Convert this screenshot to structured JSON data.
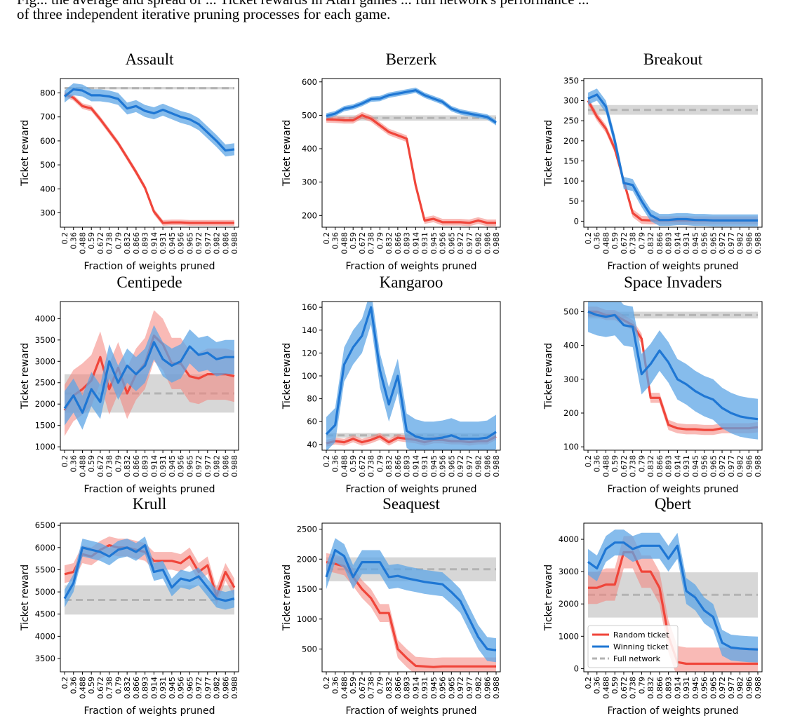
{
  "caption": {
    "line1": "Fig... the average and spread of ... Ticket rewards in Atari games ... full network's performance ...",
    "line2": "of three independent iterative pruning processes for each game."
  },
  "colors": {
    "random": "#f0453a",
    "winning": "#1f77d4",
    "full": "#b3b3b3",
    "random_fill": "#f4827a",
    "winning_fill": "#5ea6e6",
    "full_fill": "#c9c9c9"
  },
  "legend": {
    "placement": "lower-left (Qbert panel)",
    "entries": [
      "Random ticket",
      "Winning ticket",
      "Full network"
    ]
  },
  "chart_data": [
    {
      "type": "line",
      "title": "Assault",
      "xlabel": "Fraction of weights pruned",
      "ylabel": "Ticket reward",
      "x": [
        "0.2",
        "0.36",
        "0.488",
        "0.59",
        "0.672",
        "0.738",
        "0.79",
        "0.832",
        "0.866",
        "0.893",
        "0.914",
        "0.931",
        "0.945",
        "0.956",
        "0.965",
        "0.972",
        "0.977",
        "0.982",
        "0.986",
        "0.988"
      ],
      "ylim": [
        240,
        860
      ],
      "yticks": [
        300,
        400,
        500,
        600,
        700,
        800
      ],
      "series": [
        {
          "name": "Random ticket",
          "values": [
            795,
            780,
            745,
            735,
            690,
            640,
            590,
            530,
            470,
            405,
            305,
            258,
            260,
            260,
            258,
            258,
            258,
            258,
            258,
            258
          ],
          "spread": 12
        },
        {
          "name": "Winning ticket",
          "values": [
            785,
            815,
            810,
            790,
            790,
            785,
            775,
            735,
            745,
            725,
            715,
            730,
            715,
            700,
            690,
            670,
            635,
            600,
            560,
            565
          ],
          "spread": 25
        },
        {
          "name": "Full network",
          "values": [
            820,
            820,
            820,
            820,
            820,
            820,
            820,
            820,
            820,
            820,
            820,
            820,
            820,
            820,
            820,
            820,
            820,
            820,
            820,
            820
          ],
          "spread": 5
        }
      ]
    },
    {
      "type": "line",
      "title": "Berzerk",
      "xlabel": "Fraction of weights pruned",
      "ylabel": "Ticket reward",
      "x": [
        "0.2",
        "0.36",
        "0.488",
        "0.59",
        "0.672",
        "0.738",
        "0.79",
        "0.832",
        "0.866",
        "0.893",
        "0.914",
        "0.931",
        "0.945",
        "0.956",
        "0.965",
        "0.972",
        "0.977",
        "0.982",
        "0.986",
        "0.988"
      ],
      "ylim": [
        165,
        610
      ],
      "yticks": [
        200,
        300,
        400,
        500,
        600
      ],
      "series": [
        {
          "name": "Random ticket",
          "values": [
            488,
            487,
            485,
            485,
            500,
            490,
            470,
            450,
            440,
            430,
            290,
            185,
            190,
            180,
            180,
            180,
            178,
            185,
            178,
            178
          ],
          "spread": 10
        },
        {
          "name": "Winning ticket",
          "values": [
            498,
            505,
            520,
            525,
            535,
            548,
            550,
            560,
            565,
            570,
            575,
            560,
            550,
            540,
            520,
            510,
            505,
            500,
            495,
            478
          ],
          "spread": 8
        },
        {
          "name": "Full network",
          "values": [
            492,
            492,
            492,
            492,
            492,
            492,
            492,
            492,
            492,
            492,
            492,
            492,
            492,
            492,
            492,
            492,
            492,
            492,
            492,
            492
          ],
          "spread": 8
        }
      ]
    },
    {
      "type": "line",
      "title": "Breakout",
      "xlabel": "Fraction of weights pruned",
      "ylabel": "Ticket reward",
      "x": [
        "0.2",
        "0.36",
        "0.488",
        "0.59",
        "0.672",
        "0.738",
        "0.79",
        "0.832",
        "0.866",
        "0.893",
        "0.914",
        "0.931",
        "0.945",
        "0.956",
        "0.965",
        "0.972",
        "0.977",
        "0.982",
        "0.986",
        "0.988"
      ],
      "ylim": [
        -15,
        355
      ],
      "yticks": [
        0,
        50,
        100,
        150,
        200,
        250,
        300,
        350
      ],
      "series": [
        {
          "name": "Random ticket",
          "values": [
            300,
            260,
            230,
            180,
            100,
            20,
            3,
            2,
            2,
            2,
            2,
            2,
            2,
            2,
            2,
            2,
            2,
            2,
            2,
            2
          ],
          "spread": 10
        },
        {
          "name": "Winning ticket",
          "values": [
            305,
            315,
            285,
            200,
            95,
            90,
            50,
            15,
            3,
            3,
            5,
            5,
            3,
            3,
            2,
            2,
            2,
            2,
            2,
            2
          ],
          "spread": 15
        },
        {
          "name": "Full network",
          "values": [
            277,
            277,
            277,
            277,
            277,
            277,
            277,
            277,
            277,
            277,
            277,
            277,
            277,
            277,
            277,
            277,
            277,
            277,
            277,
            277
          ],
          "spread": 12
        }
      ]
    },
    {
      "type": "line",
      "title": "Centipede",
      "xlabel": "Fraction of weights pruned",
      "ylabel": "Ticket reward",
      "x": [
        "0.2",
        "0.36",
        "0.488",
        "0.59",
        "0.672",
        "0.738",
        "0.79",
        "0.832",
        "0.866",
        "0.893",
        "0.914",
        "0.931",
        "0.945",
        "0.956",
        "0.965",
        "0.972",
        "0.977",
        "0.982",
        "0.986",
        "0.988"
      ],
      "ylim": [
        920,
        4400
      ],
      "yticks": [
        1000,
        1500,
        2000,
        2500,
        3000,
        3500,
        4000
      ],
      "series": [
        {
          "name": "Random ticket",
          "values": [
            1850,
            2200,
            2350,
            2550,
            3100,
            2350,
            2850,
            2250,
            2700,
            2950,
            3600,
            3400,
            2950,
            2950,
            2650,
            2600,
            2700,
            2700,
            2700,
            2650
          ],
          "spread": 600
        },
        {
          "name": "Winning ticket",
          "values": [
            1900,
            2200,
            1800,
            2350,
            2050,
            3000,
            2500,
            2900,
            2700,
            2900,
            3450,
            3050,
            2900,
            3000,
            3350,
            3150,
            3200,
            3050,
            3100,
            3100
          ],
          "spread": 400
        },
        {
          "name": "Full network",
          "values": [
            2250,
            2250,
            2250,
            2250,
            2250,
            2250,
            2250,
            2250,
            2250,
            2250,
            2250,
            2250,
            2250,
            2250,
            2250,
            2250,
            2250,
            2250,
            2250,
            2250
          ],
          "spread": 450
        }
      ]
    },
    {
      "type": "line",
      "title": "Kangaroo",
      "xlabel": "Fraction of weights pruned",
      "ylabel": "Ticket reward",
      "x": [
        "0.2",
        "0.36",
        "0.488",
        "0.59",
        "0.672",
        "0.738",
        "0.79",
        "0.832",
        "0.866",
        "0.893",
        "0.914",
        "0.931",
        "0.945",
        "0.956",
        "0.965",
        "0.972",
        "0.977",
        "0.982",
        "0.986",
        "0.988"
      ],
      "ylim": [
        35,
        165
      ],
      "yticks": [
        40,
        60,
        80,
        100,
        120,
        140,
        160
      ],
      "series": [
        {
          "name": "Random ticket",
          "values": [
            41,
            43,
            42,
            45,
            42,
            44,
            47,
            42,
            46,
            45,
            44,
            42,
            44,
            44,
            43,
            43,
            42,
            43,
            43,
            47
          ],
          "spread": 3
        },
        {
          "name": "Winning ticket",
          "values": [
            49,
            57,
            110,
            125,
            135,
            160,
            105,
            75,
            100,
            52,
            47,
            45,
            45,
            46,
            48,
            45,
            45,
            45,
            46,
            51
          ],
          "spread": 15
        },
        {
          "name": "Full network",
          "values": [
            48,
            48,
            48,
            48,
            48,
            48,
            48,
            48,
            48,
            48,
            48,
            48,
            48,
            48,
            48,
            48,
            48,
            48,
            48,
            48
          ],
          "spread": 2
        }
      ]
    },
    {
      "type": "line",
      "title": "Space Invaders",
      "xlabel": "Fraction of weights pruned",
      "ylabel": "Ticket reward",
      "x": [
        "0.2",
        "0.36",
        "0.488",
        "0.59",
        "0.672",
        "0.738",
        "0.79",
        "0.832",
        "0.866",
        "0.893",
        "0.914",
        "0.931",
        "0.945",
        "0.956",
        "0.965",
        "0.972",
        "0.977",
        "0.982",
        "0.986",
        "0.988"
      ],
      "ylim": [
        90,
        530
      ],
      "yticks": [
        100,
        200,
        300,
        400,
        500
      ],
      "series": [
        {
          "name": "Random ticket",
          "values": [
            500,
            500,
            490,
            490,
            475,
            460,
            420,
            245,
            245,
            165,
            155,
            152,
            152,
            150,
            150,
            155,
            155,
            155,
            155,
            158
          ],
          "spread": 15
        },
        {
          "name": "Winning ticket",
          "values": [
            500,
            490,
            485,
            490,
            460,
            455,
            315,
            345,
            385,
            350,
            300,
            285,
            265,
            250,
            240,
            215,
            200,
            190,
            185,
            182
          ],
          "spread": 60
        },
        {
          "name": "Full network",
          "values": [
            490,
            490,
            490,
            490,
            490,
            490,
            490,
            490,
            490,
            490,
            490,
            490,
            490,
            490,
            490,
            490,
            490,
            490,
            490,
            490
          ],
          "spread": 10
        }
      ]
    },
    {
      "type": "line",
      "title": "Krull",
      "xlabel": "Fraction of weights pruned",
      "ylabel": "Ticket reward",
      "x": [
        "0.2",
        "0.36",
        "0.488",
        "0.59",
        "0.672",
        "0.738",
        "0.79",
        "0.832",
        "0.866",
        "0.893",
        "0.914",
        "0.931",
        "0.945",
        "0.956",
        "0.965",
        "0.972",
        "0.977",
        "0.982",
        "0.986",
        "0.988"
      ],
      "ylim": [
        3200,
        6550
      ],
      "yticks": [
        3500,
        4000,
        4500,
        5000,
        5500,
        6000,
        6500
      ],
      "series": [
        {
          "name": "Random ticket",
          "values": [
            5400,
            5450,
            5850,
            5800,
            5950,
            6050,
            6000,
            6000,
            5950,
            5900,
            5700,
            5700,
            5700,
            5650,
            5800,
            5450,
            5600,
            4900,
            5450,
            5100
          ],
          "spread": 200
        },
        {
          "name": "Winning ticket",
          "values": [
            4850,
            5200,
            6000,
            5950,
            5900,
            5800,
            5950,
            6000,
            5900,
            6050,
            5450,
            5500,
            5100,
            5300,
            5250,
            5350,
            5100,
            4850,
            4800,
            4850
          ],
          "spread": 200
        },
        {
          "name": "Full network",
          "values": [
            4820,
            4820,
            4820,
            4820,
            4820,
            4820,
            4820,
            4820,
            4820,
            4820,
            4820,
            4820,
            4820,
            4820,
            4820,
            4820,
            4820,
            4820,
            4820,
            4820
          ],
          "spread": 330
        }
      ]
    },
    {
      "type": "line",
      "title": "Seaquest",
      "xlabel": "Fraction of weights pruned",
      "ylabel": "Ticket reward",
      "x": [
        "0.2",
        "0.36",
        "0.488",
        "0.59",
        "0.672",
        "0.738",
        "0.79",
        "0.832",
        "0.866",
        "0.893",
        "0.914",
        "0.931",
        "0.945",
        "0.956",
        "0.965",
        "0.972",
        "0.977",
        "0.982",
        "0.986",
        "0.988"
      ],
      "ylim": [
        120,
        2600
      ],
      "yticks": [
        500,
        1000,
        1500,
        2000,
        2500
      ],
      "series": [
        {
          "name": "Random ticket",
          "values": [
            1950,
            1920,
            1880,
            1700,
            1500,
            1350,
            1100,
            1100,
            500,
            350,
            220,
            210,
            200,
            210,
            210,
            210,
            210,
            210,
            210,
            210
          ],
          "spread": 150
        },
        {
          "name": "Winning ticket",
          "values": [
            1700,
            2150,
            2050,
            1700,
            1950,
            1950,
            1950,
            1700,
            1720,
            1680,
            1650,
            1620,
            1600,
            1580,
            1450,
            1300,
            1000,
            700,
            500,
            480
          ],
          "spread": 200
        },
        {
          "name": "Full network",
          "values": [
            1830,
            1830,
            1830,
            1830,
            1830,
            1830,
            1830,
            1830,
            1830,
            1830,
            1830,
            1830,
            1830,
            1830,
            1830,
            1830,
            1830,
            1830,
            1830,
            1830
          ],
          "spread": 200
        }
      ]
    },
    {
      "type": "line",
      "title": "Qbert",
      "xlabel": "Fraction of weights pruned",
      "ylabel": "Ticket reward",
      "x": [
        "0.2",
        "0.36",
        "0.488",
        "0.59",
        "0.672",
        "0.738",
        "0.79",
        "0.832",
        "0.866",
        "0.893",
        "0.914",
        "0.931",
        "0.945",
        "0.956",
        "0.965",
        "0.972",
        "0.977",
        "0.982",
        "0.986",
        "0.988"
      ],
      "ylim": [
        -100,
        4500
      ],
      "yticks": [
        0,
        1000,
        2000,
        3000,
        4000
      ],
      "series": [
        {
          "name": "Random ticket",
          "values": [
            2500,
            2500,
            2600,
            2600,
            3600,
            3600,
            3000,
            3000,
            2500,
            1000,
            200,
            150,
            150,
            150,
            150,
            150,
            150,
            150,
            150,
            150
          ],
          "spread": 500
        },
        {
          "name": "Winning ticket",
          "values": [
            3300,
            3100,
            3700,
            3900,
            3900,
            3700,
            3800,
            3800,
            3800,
            3400,
            3800,
            2400,
            2200,
            1800,
            1600,
            800,
            650,
            620,
            600,
            590
          ],
          "spread": 400
        },
        {
          "name": "Full network",
          "values": [
            2280,
            2280,
            2280,
            2280,
            2280,
            2280,
            2280,
            2280,
            2280,
            2280,
            2280,
            2280,
            2280,
            2280,
            2280,
            2280,
            2280,
            2280,
            2280,
            2280
          ],
          "spread": 700
        }
      ]
    }
  ]
}
